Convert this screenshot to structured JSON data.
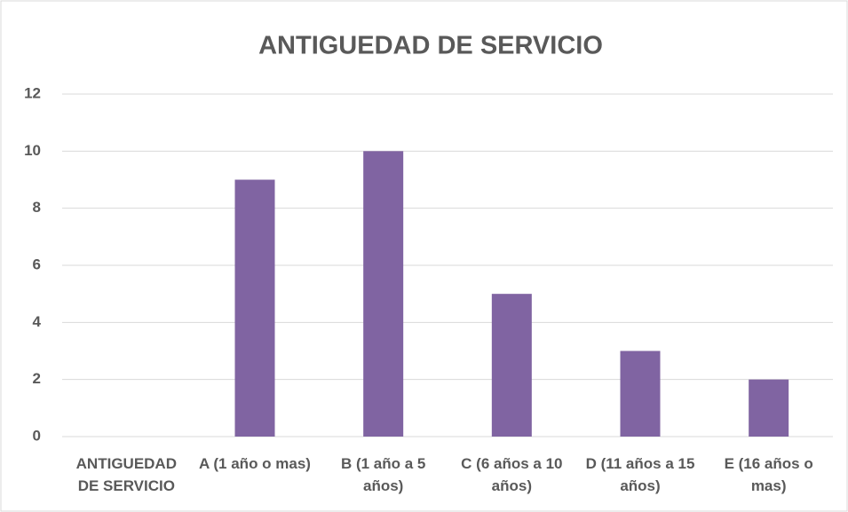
{
  "chart_data": {
    "type": "bar",
    "title": "ANTIGUEDAD DE SERVICIO",
    "categories": [
      "ANTIGUEDAD DE SERVICIO",
      "A (1 año o mas)",
      "B (1 año a 5 años)",
      "C (6 años a 10 años)",
      "D (11 años a 15 años)",
      "E (16 años o mas)"
    ],
    "values": [
      null,
      9,
      10,
      5,
      3,
      2
    ],
    "color": "#8064a2",
    "ylim": [
      0,
      12
    ],
    "yticks": [
      0,
      2,
      4,
      6,
      8,
      10,
      12
    ],
    "grid": true
  }
}
